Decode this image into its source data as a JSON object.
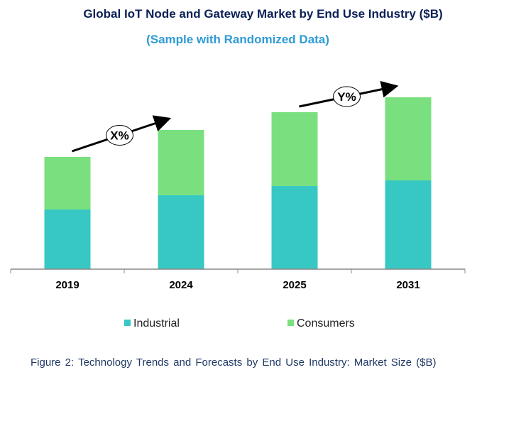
{
  "chart_data": {
    "type": "bar",
    "stacked": true,
    "title": "Global IoT Node and Gateway Market by End Use Industry ($B)",
    "subtitle": "(Sample with Randomized Data)",
    "categories": [
      "2019",
      "2024",
      "2025",
      "2031"
    ],
    "series": [
      {
        "name": "Industrial",
        "color": "#38c8c4",
        "values": [
          84,
          104,
          117,
          125
        ]
      },
      {
        "name": "Consumers",
        "color": "#7ae07f",
        "values": [
          74,
          92,
          104,
          117
        ]
      }
    ],
    "ylim": [
      0,
      250
    ],
    "y_axis_shown": false,
    "grid": false,
    "legend": "bottom",
    "annotations": [
      {
        "text": "X%",
        "from": "2019",
        "to": "2024"
      },
      {
        "text": "Y%",
        "from": "2025",
        "to": "2031"
      }
    ],
    "xlabel": "",
    "ylabel": ""
  },
  "caption": "Figure 2: Technology Trends and Forecasts by End Use Industry:  Market Size ($B)"
}
